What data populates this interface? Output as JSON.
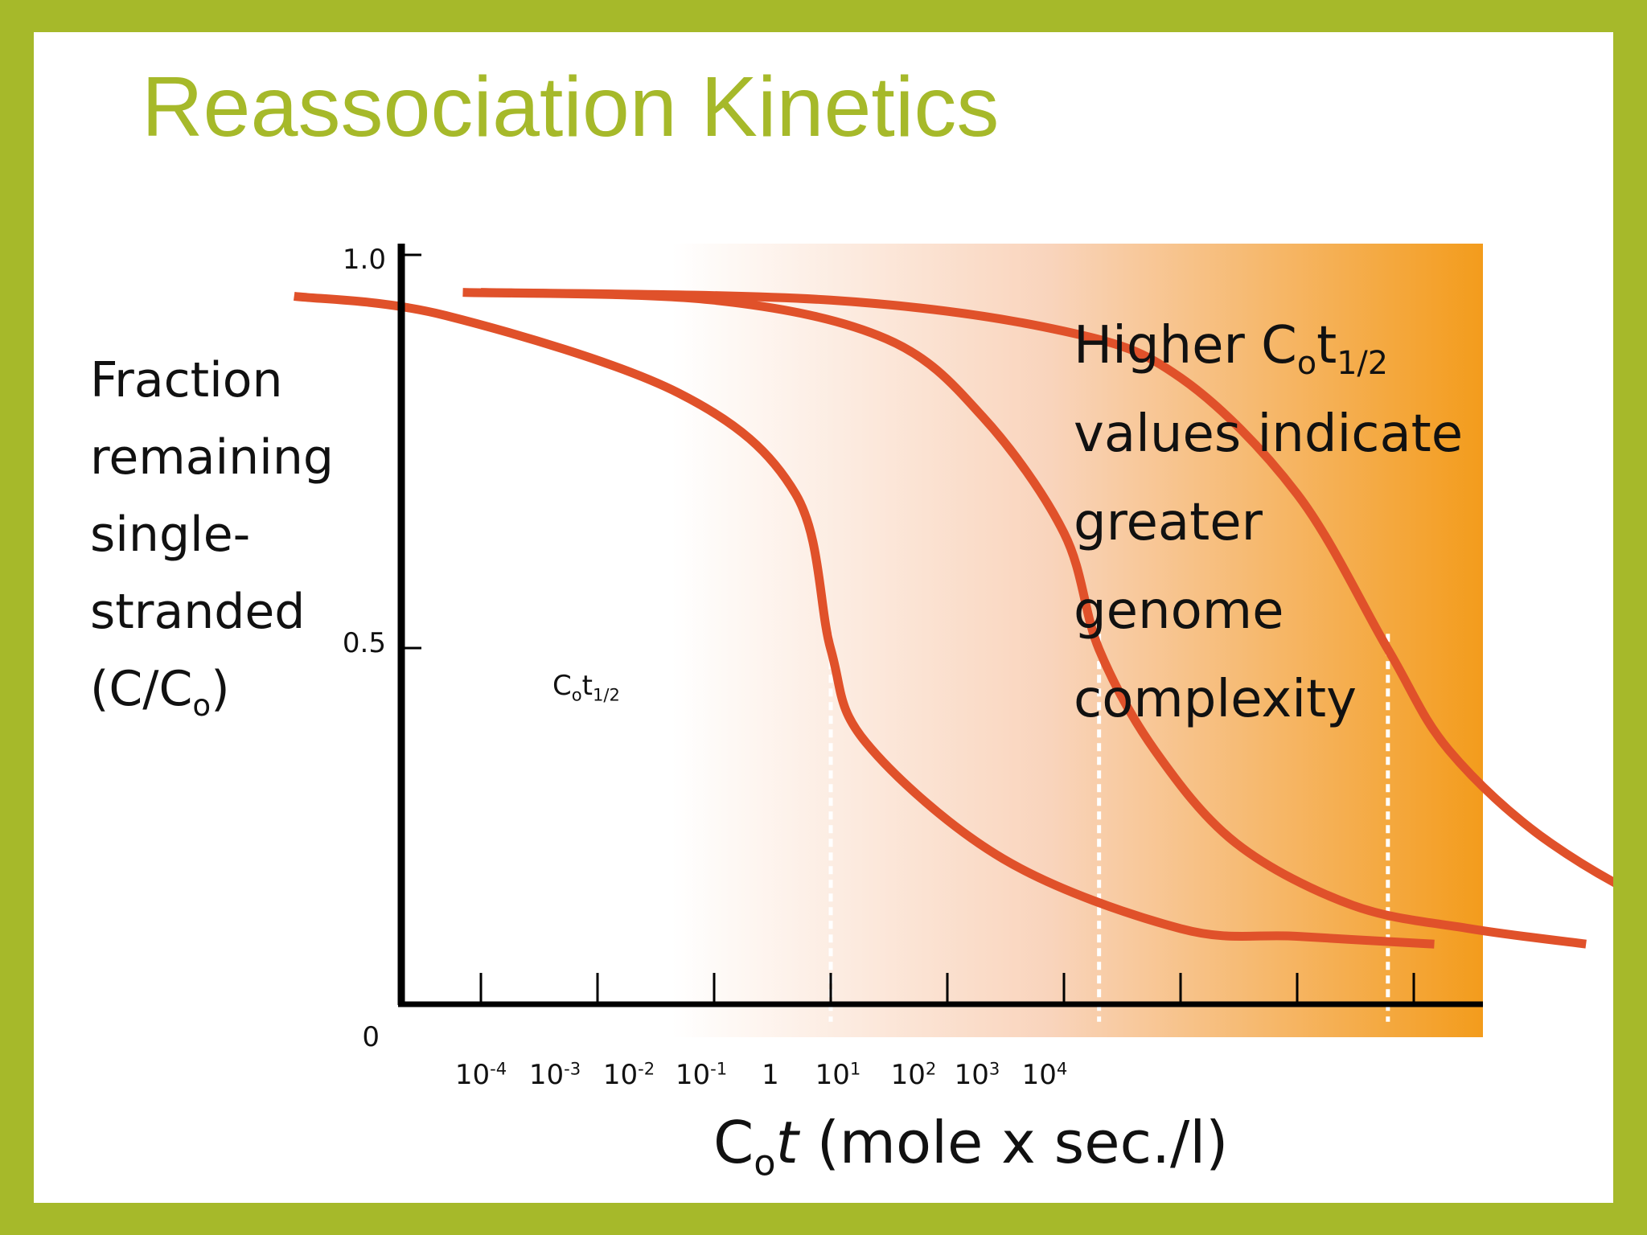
{
  "slide": {
    "title": "Reassociation Kinetics"
  },
  "chart_data": {
    "type": "line",
    "title": "",
    "ylabel_lines": [
      "Fraction",
      "remaining",
      "single-",
      "stranded",
      "(C/C",
      "o",
      ")"
    ],
    "ylabel": "Fraction remaining single-stranded (C/Co)",
    "xlabel": "Cot (mole x sec./l)",
    "xlabel_parts": {
      "c": "C",
      "sub": "o",
      "t": "t",
      "rest": " (mole x sec./l)"
    },
    "x_scale": "log10",
    "x_ticks": [
      {
        "base": "10",
        "exp": "-4",
        "value": 0.0001
      },
      {
        "base": "10",
        "exp": "-3",
        "value": 0.001
      },
      {
        "base": "10",
        "exp": "-2",
        "value": 0.01
      },
      {
        "base": "10",
        "exp": "-1",
        "value": 0.1
      },
      {
        "base": "1",
        "exp": "",
        "value": 1
      },
      {
        "base": "10",
        "exp": "1",
        "value": 10
      },
      {
        "base": "10",
        "exp": "2",
        "value": 100
      },
      {
        "base": "10",
        "exp": "3",
        "value": 1000
      },
      {
        "base": "10",
        "exp": "4",
        "value": 10000
      }
    ],
    "y_ticks": [
      "1.0",
      "0.5",
      "0"
    ],
    "ylim": [
      0,
      1.0
    ],
    "xlim": [
      1e-06,
      100000000
    ],
    "series": [
      {
        "cot_half": 0.1,
        "points": [
          [
            2.5e-06,
            0.955
          ],
          [
            5e-05,
            0.93
          ],
          [
            0.005,
            0.83
          ],
          [
            0.05,
            0.7
          ],
          [
            0.1,
            0.5
          ],
          [
            0.2,
            0.38
          ],
          [
            3,
            0.23
          ],
          [
            100,
            0.14
          ],
          [
            1000,
            0.13
          ],
          [
            15000,
            0.12
          ]
        ]
      },
      {
        "cot_half": 20,
        "points": [
          [
            7e-05,
            0.96
          ],
          [
            0.01,
            0.95
          ],
          [
            0.3,
            0.9
          ],
          [
            2,
            0.8
          ],
          [
            10,
            0.65
          ],
          [
            20,
            0.5
          ],
          [
            60,
            0.37
          ],
          [
            300,
            0.25
          ],
          [
            3000,
            0.17
          ],
          [
            30000,
            0.14
          ],
          [
            300000,
            0.12
          ]
        ]
      },
      {
        "cot_half": 6000,
        "points": [
          [
            0.0001,
            0.96
          ],
          [
            0.1,
            0.95
          ],
          [
            10,
            0.91
          ],
          [
            100,
            0.85
          ],
          [
            1000,
            0.7
          ],
          [
            6000,
            0.5
          ],
          [
            20000,
            0.37
          ],
          [
            150000,
            0.25
          ],
          [
            2000000,
            0.16
          ],
          [
            30000000,
            0.13
          ]
        ]
      }
    ],
    "annotations": {
      "cot_half_label": {
        "c": "C",
        "sub": "o",
        "t": "t",
        "sub2": "1/2"
      },
      "note_lines": [
        "Higher C",
        "o",
        "t",
        "1/2",
        "values indicate",
        "greater",
        "genome",
        "complexity"
      ]
    },
    "colors": {
      "curve": "#e0512a",
      "gradient_start": "#ffffff",
      "gradient_end": "#f39c1c",
      "frame": "#a6b92a",
      "title": "#a6b92a"
    },
    "grid": false,
    "legend": "none"
  }
}
